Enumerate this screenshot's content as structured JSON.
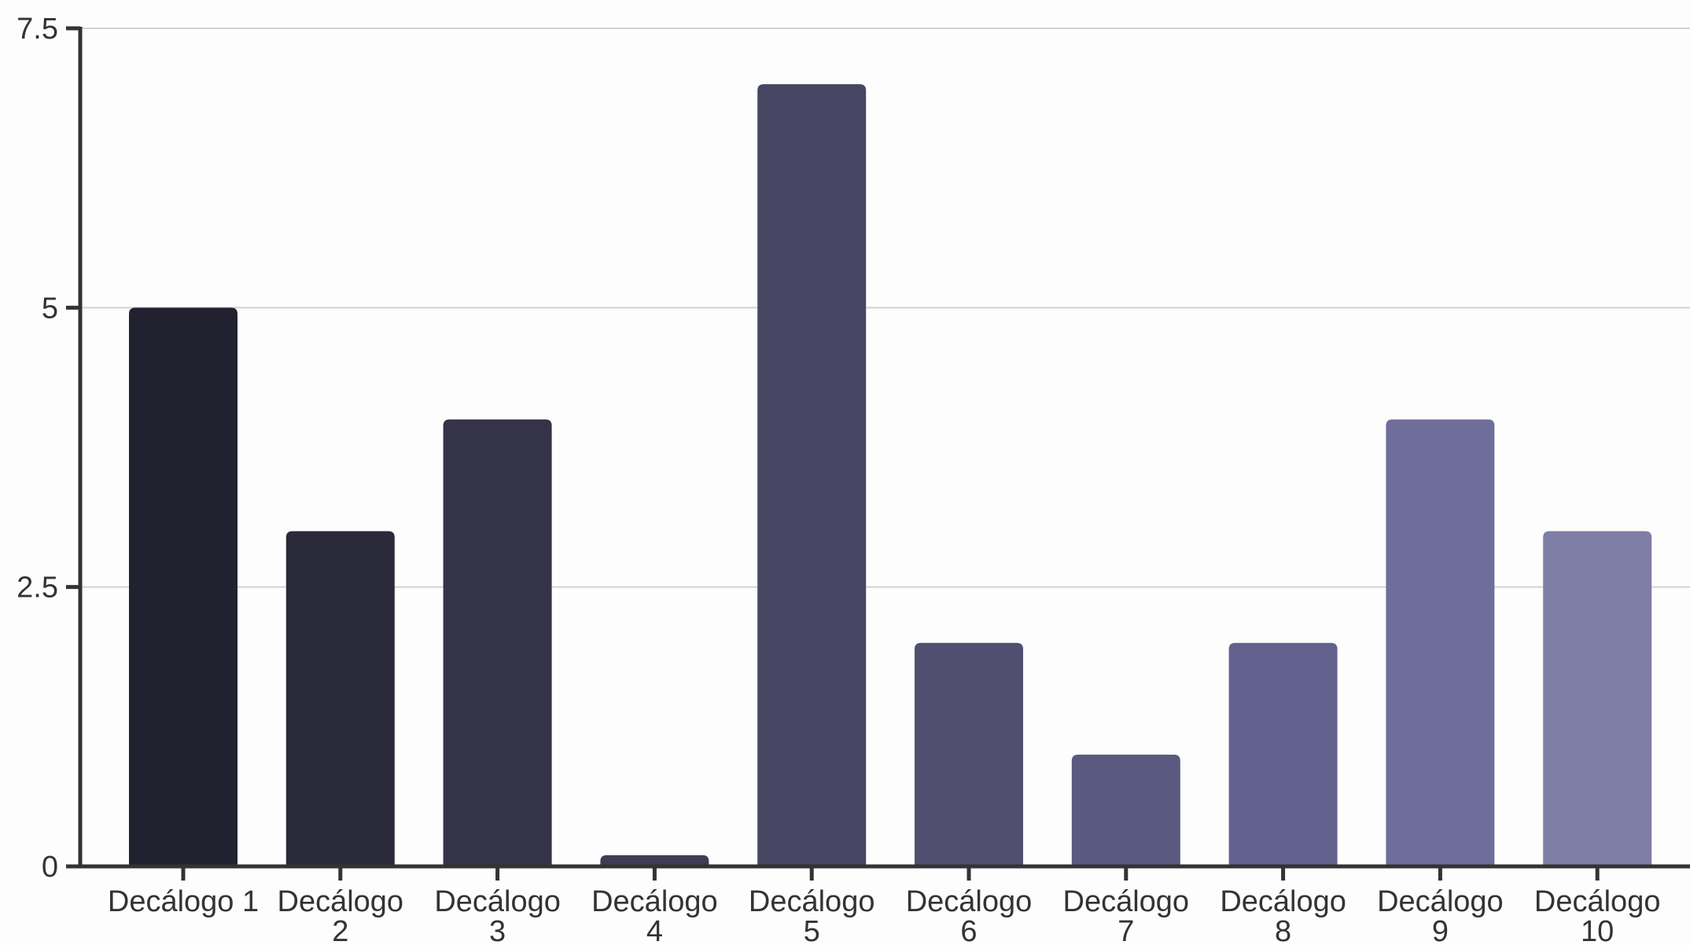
{
  "chart_data": {
    "type": "bar",
    "categories": [
      [
        "Decálogo 1"
      ],
      [
        "Decálogo",
        "2"
      ],
      [
        "Decálogo",
        "3"
      ],
      [
        "Decálogo",
        "4"
      ],
      [
        "Decálogo",
        "5"
      ],
      [
        "Decálogo",
        "6"
      ],
      [
        "Decálogo",
        "7"
      ],
      [
        "Decálogo",
        "8"
      ],
      [
        "Decálogo",
        "9"
      ],
      [
        "Decálogo",
        "10"
      ]
    ],
    "values": [
      5,
      3,
      4,
      0.1,
      7,
      2,
      1,
      2,
      4,
      3
    ],
    "colors": [
      "#22212f",
      "#2b2a3b",
      "#343347",
      "#3e3d55",
      "#474663",
      "#504f71",
      "#5a597f",
      "#63628e",
      "#6f6e9a",
      "#7f7ea6"
    ],
    "ylim": [
      0,
      7.5
    ],
    "yticks": [
      {
        "value": 0,
        "label": "0"
      },
      {
        "value": 2.5,
        "label": "2.5"
      },
      {
        "value": 5,
        "label": "5"
      },
      {
        "value": 7.5,
        "label": "7.5"
      }
    ],
    "grid": true,
    "title": "",
    "xlabel": "",
    "ylabel": ""
  }
}
